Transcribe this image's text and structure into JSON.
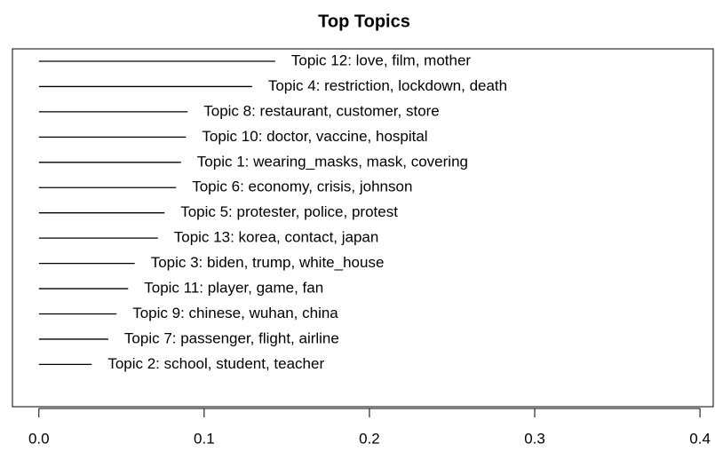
{
  "chart_data": {
    "type": "bar",
    "title": "Top Topics",
    "categories": [
      "Topic 12: love, film, mother",
      "Topic 4: restriction, lockdown, death",
      "Topic 8: restaurant, customer, store",
      "Topic 10: doctor, vaccine, hospital",
      "Topic 1: wearing_masks, mask, covering",
      "Topic 6: economy, crisis, johnson",
      "Topic 5: protester, police, protest",
      "Topic 13: korea, contact, japan",
      "Topic 3: biden, trump, white_house",
      "Topic 11: player, game, fan",
      "Topic 9: chinese, wuhan, china",
      "Topic 7: passenger, flight, airline",
      "Topic 2: school, student, teacher"
    ],
    "values": [
      0.143,
      0.129,
      0.09,
      0.089,
      0.086,
      0.083,
      0.076,
      0.072,
      0.058,
      0.054,
      0.047,
      0.042,
      0.032
    ],
    "color": "#000000",
    "xlim": [
      -0.016,
      0.408
    ],
    "xticks": [
      {
        "value": 0,
        "label": "0.0"
      },
      0.1,
      0.2,
      0.3,
      0.4
    ]
  }
}
